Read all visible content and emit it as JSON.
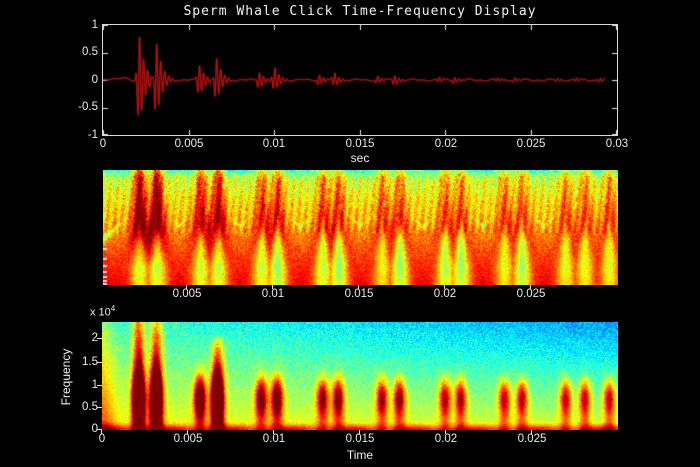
{
  "figure": {
    "title": "Sperm Whale Click Time-Frequency Display",
    "background_color": "#000000",
    "axis_color": "#e8e8e8",
    "colormap": "jet",
    "waveform_color": "#cf1a1a",
    "waveform_shadow_color": "#7d0606"
  },
  "chart_data": [
    {
      "type": "line",
      "name": "waveform",
      "xlabel": "sec",
      "xlim": [
        0,
        0.03
      ],
      "ylim": [
        -1,
        1
      ],
      "xticks": [
        "0",
        "0.005",
        "0.01",
        "0.015",
        "0.02",
        "0.025",
        "0.03"
      ],
      "yticks": [
        "1",
        "0.5",
        "0",
        "-0.5",
        "-1"
      ],
      "description": "Sperm whale click train: paired impulses about 1 ms apart, amplitude decaying over ~0.03 s",
      "clicks": [
        {
          "t": 0.0021,
          "a": 0.87
        },
        {
          "t": 0.0031,
          "a": 0.74
        },
        {
          "t": 0.0056,
          "a": 0.3
        },
        {
          "t": 0.0066,
          "a": 0.42
        },
        {
          "t": 0.0091,
          "a": 0.16
        },
        {
          "t": 0.01,
          "a": 0.22
        },
        {
          "t": 0.0126,
          "a": 0.1
        },
        {
          "t": 0.0135,
          "a": 0.13
        },
        {
          "t": 0.016,
          "a": 0.07
        },
        {
          "t": 0.017,
          "a": 0.1
        },
        {
          "t": 0.0196,
          "a": 0.05
        },
        {
          "t": 0.0205,
          "a": 0.06
        },
        {
          "t": 0.023,
          "a": 0.035
        },
        {
          "t": 0.024,
          "a": 0.045
        },
        {
          "t": 0.0265,
          "a": 0.03
        },
        {
          "t": 0.0276,
          "a": 0.035
        },
        {
          "t": 0.029,
          "a": 0.04
        }
      ]
    },
    {
      "type": "heatmap",
      "name": "scalogram",
      "colormap": "jet",
      "xlim": [
        0,
        0.0295
      ],
      "xticks": [
        "0.005",
        "0.01",
        "0.015",
        "0.02",
        "0.025"
      ],
      "description": "Wavelet scalogram: dark-red vertical energy ridges at each click over red low-frequency floor with yellow interference fringes fanning downward; green/cyan speckle along top edge"
    },
    {
      "type": "heatmap",
      "name": "spectrogram",
      "colormap": "jet",
      "xlabel": "Time",
      "ylabel": "Frequency",
      "y_scale_base": "x 10",
      "y_scale_exp": "4",
      "xlim": [
        0,
        0.0295
      ],
      "ylim": [
        0,
        24000
      ],
      "yticks": [
        "2",
        "1.5",
        "1",
        "0.5",
        "0"
      ],
      "xticks": [
        "0",
        "0.005",
        "0.01",
        "0.015",
        "0.02",
        "0.025"
      ],
      "description": "Spectrogram: red click blobs centered near 5-10 kHz at each click time, first click pair broadband to 24 kHz, red band along 0 Hz, cyan/blue background at upper right"
    }
  ]
}
